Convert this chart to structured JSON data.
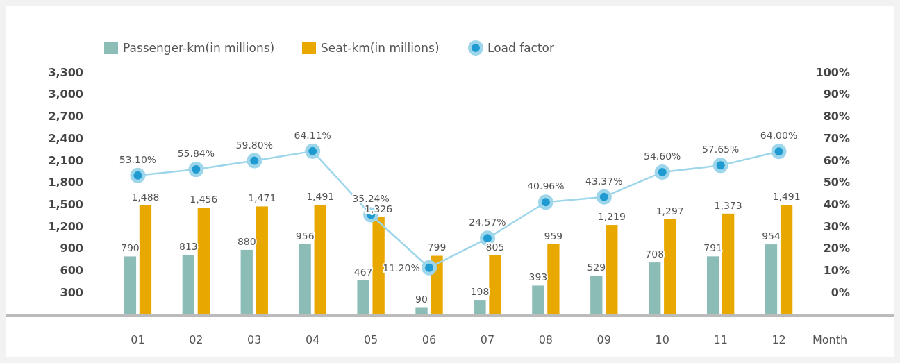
{
  "chart_data": {
    "type": "bar",
    "categories": [
      "01",
      "02",
      "03",
      "04",
      "05",
      "06",
      "07",
      "08",
      "09",
      "10",
      "11",
      "12"
    ],
    "xlabel": "Month",
    "series": [
      {
        "name": "Passenger-km(in millions)",
        "color": "#8bbcb5",
        "values": [
          790,
          813,
          880,
          956,
          467,
          90,
          198,
          393,
          529,
          708,
          791,
          954
        ],
        "value_labels": [
          "790",
          "813",
          "880",
          "956",
          "467",
          "90",
          "198",
          "393",
          "529",
          "708",
          "791",
          "954"
        ]
      },
      {
        "name": "Seat-km(in millions)",
        "color": "#e8a800",
        "values": [
          1488,
          1456,
          1471,
          1491,
          1326,
          799,
          805,
          959,
          1219,
          1297,
          1373,
          1491
        ],
        "value_labels": [
          "1,488",
          "1,456",
          "1,471",
          "1,491",
          "1,326",
          "799",
          "805",
          "959",
          "1,219",
          "1,297",
          "1,373",
          "1,491"
        ]
      },
      {
        "name": "Load factor",
        "type": "line",
        "axis": "y2",
        "color": "#9dd6ea",
        "marker": "circle",
        "values": [
          53.1,
          55.84,
          59.8,
          64.11,
          35.24,
          11.2,
          24.57,
          40.96,
          43.37,
          54.6,
          57.65,
          64.0
        ],
        "value_labels": [
          "53.10%",
          "55.84%",
          "59.80%",
          "64.11%",
          "35.24%",
          "11.20%",
          "24.57%",
          "40.96%",
          "43.37%",
          "54.60%",
          "57.65%",
          "64.00%"
        ]
      }
    ],
    "ylim": [
      0,
      3300
    ],
    "yticks": [
      {
        "value": 300,
        "label": "300"
      },
      {
        "value": 600,
        "label": "600"
      },
      {
        "value": 900,
        "label": "900"
      },
      {
        "value": 1200,
        "label": "1,200"
      },
      {
        "value": 1500,
        "label": "1,500"
      },
      {
        "value": 1800,
        "label": "1,800"
      },
      {
        "value": 2100,
        "label": "2,100"
      },
      {
        "value": 2400,
        "label": "2,400"
      },
      {
        "value": 2700,
        "label": "2,700"
      },
      {
        "value": 3000,
        "label": "3,000"
      },
      {
        "value": 3300,
        "label": "3,300"
      }
    ],
    "y2lim": [
      -10,
      100
    ],
    "y2ticks": [
      {
        "value": 0,
        "label": "0%"
      },
      {
        "value": 10,
        "label": "10%"
      },
      {
        "value": 20,
        "label": "20%"
      },
      {
        "value": 30,
        "label": "30%"
      },
      {
        "value": 40,
        "label": "40%"
      },
      {
        "value": 50,
        "label": "50%"
      },
      {
        "value": 60,
        "label": "60%"
      },
      {
        "value": 70,
        "label": "70%"
      },
      {
        "value": 80,
        "label": "80%"
      },
      {
        "value": 90,
        "label": "90%"
      },
      {
        "value": 100,
        "label": "100%"
      }
    ],
    "legend": "top left",
    "grid": false
  }
}
